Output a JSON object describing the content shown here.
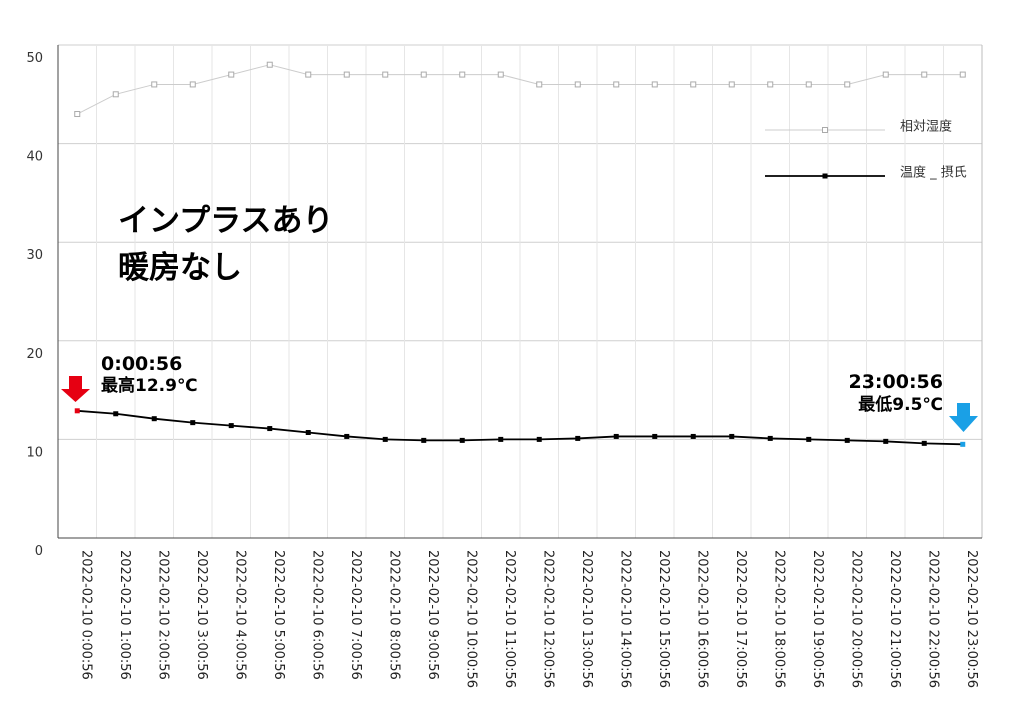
{
  "chart_data": {
    "type": "line",
    "title_lines": [
      "インプラスあり",
      "暖房なし"
    ],
    "xlabel": "",
    "ylabel": "",
    "ylim": [
      0,
      50
    ],
    "yticks": [
      "0",
      "10",
      "20",
      "30",
      "40",
      "50"
    ],
    "grid": true,
    "legend_position": "top-right",
    "x": [
      "2022-02-10 0:00:56",
      "2022-02-10 1:00:56",
      "2022-02-10 2:00:56",
      "2022-02-10 3:00:56",
      "2022-02-10 4:00:56",
      "2022-02-10 5:00:56",
      "2022-02-10 6:00:56",
      "2022-02-10 7:00:56",
      "2022-02-10 8:00:56",
      "2022-02-10 9:00:56",
      "2022-02-10 10:00:56",
      "2022-02-10 11:00:56",
      "2022-02-10 12:00:56",
      "2022-02-10 13:00:56",
      "2022-02-10 14:00:56",
      "2022-02-10 15:00:56",
      "2022-02-10 16:00:56",
      "2022-02-10 17:00:56",
      "2022-02-10 18:00:56",
      "2022-02-10 19:00:56",
      "2022-02-10 20:00:56",
      "2022-02-10 21:00:56",
      "2022-02-10 22:00:56",
      "2022-02-10 23:00:56"
    ],
    "series": [
      {
        "name": "相対湿度",
        "color": "#cccccc",
        "values": [
          43,
          45,
          46,
          46,
          47,
          48,
          47,
          47,
          47,
          47,
          47,
          47,
          46,
          46,
          46,
          46,
          46,
          46,
          46,
          46,
          46,
          47,
          47,
          47
        ]
      },
      {
        "name": "温度 _ 摂氏",
        "color": "#000000",
        "values": [
          12.9,
          12.6,
          12.1,
          11.7,
          11.4,
          11.1,
          10.7,
          10.3,
          10.0,
          9.9,
          9.9,
          10.0,
          10.0,
          10.1,
          10.3,
          10.3,
          10.3,
          10.3,
          10.1,
          10.0,
          9.9,
          9.8,
          9.6,
          9.5
        ]
      }
    ],
    "annotations": [
      {
        "time": "0:00:56",
        "label": "最高12.9℃",
        "arrow_color": "#e60012",
        "point_index": 0
      },
      {
        "time": "23:00:56",
        "label": "最低9.5℃",
        "arrow_color": "#1aa0e6",
        "point_index": 23
      }
    ]
  }
}
